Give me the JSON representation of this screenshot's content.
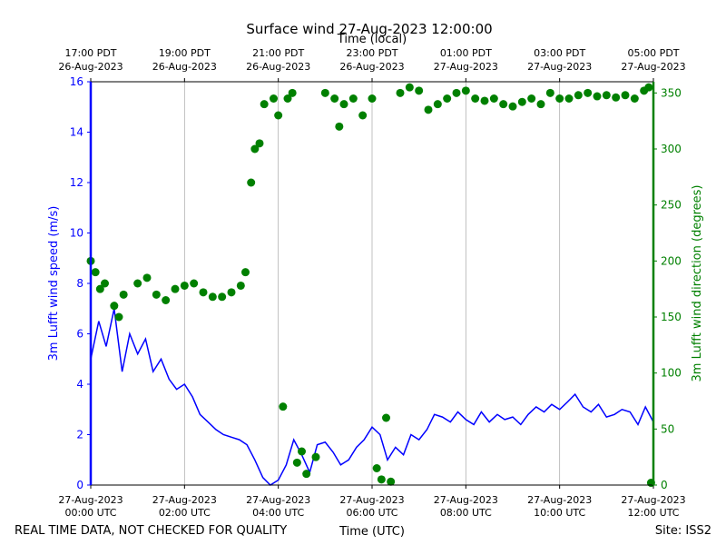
{
  "chart_data": {
    "type": "line",
    "title": "Surface wind 27-Aug-2023 12:00:00",
    "x2_label": "Time (local)",
    "x_label": "Time (UTC)",
    "y_label": "3m Lufft wind speed (m/s)",
    "y2_label": "3m Lufft wind direction (degrees)",
    "footer_left": "REAL TIME DATA, NOT CHECKED FOR QUALITY",
    "footer_right": "Site: ISS2",
    "xlim": [
      0,
      12
    ],
    "xticks": [
      {
        "value": 0,
        "label": [
          "27-Aug-2023",
          "00:00 UTC"
        ]
      },
      {
        "value": 2,
        "label": [
          "27-Aug-2023",
          "02:00 UTC"
        ]
      },
      {
        "value": 4,
        "label": [
          "27-Aug-2023",
          "04:00 UTC"
        ]
      },
      {
        "value": 6,
        "label": [
          "27-Aug-2023",
          "06:00 UTC"
        ]
      },
      {
        "value": 8,
        "label": [
          "27-Aug-2023",
          "08:00 UTC"
        ]
      },
      {
        "value": 10,
        "label": [
          "27-Aug-2023",
          "10:00 UTC"
        ]
      },
      {
        "value": 12,
        "label": [
          "27-Aug-2023",
          "12:00 UTC"
        ]
      }
    ],
    "x2ticks": [
      {
        "value": 0,
        "label": [
          "17:00 PDT",
          "26-Aug-2023"
        ]
      },
      {
        "value": 2,
        "label": [
          "19:00 PDT",
          "26-Aug-2023"
        ]
      },
      {
        "value": 4,
        "label": [
          "21:00 PDT",
          "26-Aug-2023"
        ]
      },
      {
        "value": 6,
        "label": [
          "23:00 PDT",
          "26-Aug-2023"
        ]
      },
      {
        "value": 8,
        "label": [
          "01:00 PDT",
          "27-Aug-2023"
        ]
      },
      {
        "value": 10,
        "label": [
          "03:00 PDT",
          "27-Aug-2023"
        ]
      },
      {
        "value": 12,
        "label": [
          "05:00 PDT",
          "27-Aug-2023"
        ]
      }
    ],
    "ylim": [
      0,
      16
    ],
    "yticks": [
      0,
      2,
      4,
      6,
      8,
      10,
      12,
      14,
      16
    ],
    "y2lim": [
      0,
      360
    ],
    "y2ticks": [
      0,
      50,
      100,
      150,
      200,
      250,
      300,
      350
    ],
    "grid": true,
    "series": [
      {
        "type": "line",
        "color": "#0000ff",
        "axis": "y",
        "x": [
          0,
          0.17,
          0.33,
          0.5,
          0.67,
          0.83,
          1,
          1.17,
          1.33,
          1.5,
          1.67,
          1.83,
          2,
          2.17,
          2.33,
          2.5,
          2.67,
          2.83,
          3,
          3.17,
          3.33,
          3.5,
          3.67,
          3.83,
          4,
          4.17,
          4.33,
          4.5,
          4.67,
          4.83,
          5,
          5.17,
          5.33,
          5.5,
          5.67,
          5.83,
          6,
          6.17,
          6.33,
          6.5,
          6.67,
          6.83,
          7,
          7.17,
          7.33,
          7.5,
          7.67,
          7.83,
          8,
          8.17,
          8.33,
          8.5,
          8.67,
          8.83,
          9,
          9.17,
          9.33,
          9.5,
          9.67,
          9.83,
          10,
          10.17,
          10.33,
          10.5,
          10.67,
          10.83,
          11,
          11.17,
          11.33,
          11.5,
          11.67,
          11.83,
          12
        ],
        "values": [
          5.0,
          6.5,
          5.5,
          7.0,
          4.5,
          6.0,
          5.2,
          5.8,
          4.5,
          5.0,
          4.2,
          3.8,
          4.0,
          3.5,
          2.8,
          2.5,
          2.2,
          2.0,
          1.9,
          1.8,
          1.6,
          1.0,
          0.3,
          0,
          0.2,
          0.8,
          1.8,
          1.2,
          0.5,
          1.6,
          1.7,
          1.3,
          0.8,
          1.0,
          1.5,
          1.8,
          2.3,
          2.0,
          1.0,
          1.5,
          1.2,
          2.0,
          1.8,
          2.2,
          2.8,
          2.7,
          2.5,
          2.9,
          2.6,
          2.4,
          2.9,
          2.5,
          2.8,
          2.6,
          2.7,
          2.4,
          2.8,
          3.1,
          2.9,
          3.2,
          3.0,
          3.3,
          3.6,
          3.1,
          2.9,
          3.2,
          2.7,
          2.8,
          3.0,
          2.9,
          2.4,
          3.1,
          2.5
        ]
      },
      {
        "type": "scatter",
        "color": "#008000",
        "axis": "y2",
        "x": [
          0,
          0.1,
          0.2,
          0.3,
          0.5,
          0.6,
          0.7,
          1,
          1.2,
          1.4,
          1.6,
          1.8,
          2,
          2.2,
          2.4,
          2.6,
          2.8,
          3,
          3.2,
          3.3,
          3.42,
          3.5,
          3.6,
          3.7,
          3.9,
          4,
          4.1,
          4.2,
          4.3,
          4.4,
          4.5,
          4.6,
          4.8,
          5,
          5.2,
          5.3,
          5.4,
          5.6,
          5.8,
          6,
          6.1,
          6.2,
          6.3,
          6.4,
          6.6,
          6.8,
          7,
          7.2,
          7.4,
          7.6,
          7.8,
          8,
          8.2,
          8.4,
          8.6,
          8.8,
          9,
          9.2,
          9.4,
          9.6,
          9.8,
          10,
          10.2,
          10.4,
          10.6,
          10.8,
          11,
          11.2,
          11.4,
          11.6,
          11.8,
          11.9,
          11.95
        ],
        "values": [
          200,
          190,
          175,
          180,
          160,
          150,
          170,
          180,
          185,
          170,
          165,
          175,
          178,
          180,
          172,
          168,
          168,
          172,
          178,
          190,
          270,
          300,
          305,
          340,
          345,
          330,
          70,
          345,
          350,
          20,
          30,
          10,
          25,
          350,
          345,
          320,
          340,
          345,
          330,
          345,
          15,
          5,
          60,
          3,
          350,
          355,
          352,
          335,
          340,
          345,
          350,
          352,
          345,
          343,
          345,
          340,
          338,
          342,
          345,
          340,
          350,
          345,
          345,
          348,
          350,
          347,
          348,
          346,
          348,
          345,
          352,
          355,
          2
        ]
      }
    ]
  }
}
